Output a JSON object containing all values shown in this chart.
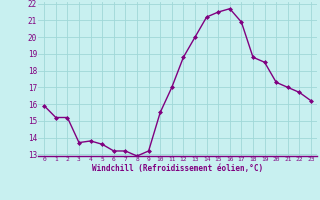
{
  "x": [
    0,
    1,
    2,
    3,
    4,
    5,
    6,
    7,
    8,
    9,
    10,
    11,
    12,
    13,
    14,
    15,
    16,
    17,
    18,
    19,
    20,
    21,
    22,
    23
  ],
  "y": [
    15.9,
    15.2,
    15.2,
    13.7,
    13.8,
    13.6,
    13.2,
    13.2,
    12.9,
    13.2,
    15.5,
    17.0,
    18.8,
    20.0,
    21.2,
    21.5,
    21.7,
    20.9,
    18.8,
    18.5,
    17.3,
    17.0,
    16.7,
    16.2
  ],
  "line_color": "#800080",
  "marker": "D",
  "marker_size": 2.0,
  "line_width": 1.0,
  "bg_color": "#c8f0f0",
  "grid_color": "#a0d8d8",
  "xlabel": "Windchill (Refroidissement éolien,°C)",
  "xlabel_color": "#800080",
  "tick_color": "#800080",
  "ylim": [
    13,
    22
  ],
  "xlim": [
    -0.5,
    23.5
  ],
  "yticks": [
    13,
    14,
    15,
    16,
    17,
    18,
    19,
    20,
    21,
    22
  ],
  "xticks": [
    0,
    1,
    2,
    3,
    4,
    5,
    6,
    7,
    8,
    9,
    10,
    11,
    12,
    13,
    14,
    15,
    16,
    17,
    18,
    19,
    20,
    21,
    22,
    23
  ]
}
